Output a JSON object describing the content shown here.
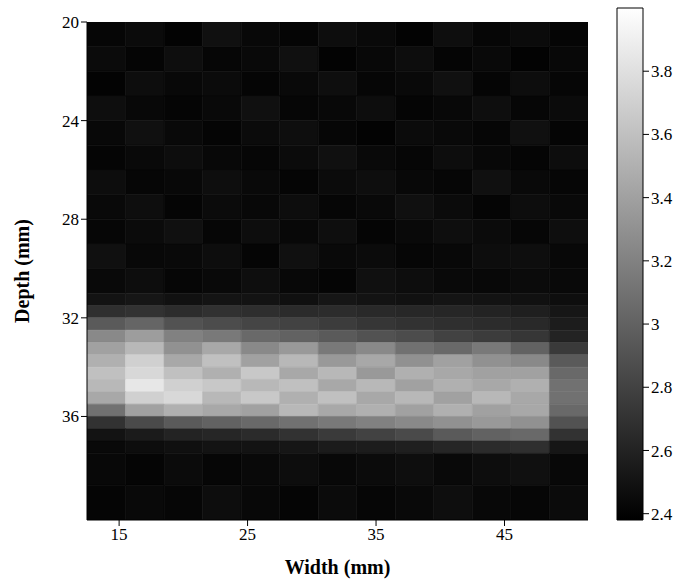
{
  "chart_data": {
    "type": "heatmap",
    "xlabel": "Width (mm)",
    "ylabel": "Depth (mm)",
    "xlim": [
      12.5,
      51.5
    ],
    "xticks": [
      15,
      25,
      35,
      45
    ],
    "ylim": [
      20,
      40.2
    ],
    "yticks": [
      20,
      24,
      28,
      32,
      36
    ],
    "heatmap": {
      "x_edges": [
        12.5,
        15.5,
        18.5,
        21.5,
        24.5,
        27.5,
        30.5,
        33.5,
        36.5,
        39.5,
        42.5,
        45.5,
        48.5,
        51.5
      ],
      "y_edges": [
        20,
        21,
        22,
        23,
        24,
        25,
        26,
        27,
        28,
        29,
        30,
        31,
        31.5,
        32,
        32.5,
        33,
        33.5,
        34,
        34.5,
        35,
        35.5,
        36,
        36.5,
        37,
        37.5,
        38.8,
        40.2
      ],
      "cells": [
        [
          2.42,
          2.45,
          2.4,
          2.48,
          2.43,
          2.41,
          2.46,
          2.44,
          2.4,
          2.47,
          2.42,
          2.45,
          2.41
        ],
        [
          2.45,
          2.41,
          2.47,
          2.42,
          2.44,
          2.48,
          2.4,
          2.43,
          2.46,
          2.41,
          2.44,
          2.4,
          2.43
        ],
        [
          2.4,
          2.46,
          2.43,
          2.45,
          2.41,
          2.44,
          2.47,
          2.42,
          2.44,
          2.48,
          2.41,
          2.46,
          2.42
        ],
        [
          2.47,
          2.43,
          2.41,
          2.44,
          2.48,
          2.42,
          2.43,
          2.46,
          2.41,
          2.43,
          2.47,
          2.42,
          2.45
        ],
        [
          2.43,
          2.48,
          2.44,
          2.41,
          2.45,
          2.47,
          2.42,
          2.4,
          2.45,
          2.44,
          2.42,
          2.48,
          2.41
        ],
        [
          2.41,
          2.44,
          2.46,
          2.43,
          2.42,
          2.45,
          2.48,
          2.44,
          2.42,
          2.46,
          2.43,
          2.41,
          2.46
        ],
        [
          2.46,
          2.42,
          2.43,
          2.47,
          2.44,
          2.41,
          2.45,
          2.47,
          2.43,
          2.42,
          2.48,
          2.44,
          2.42
        ],
        [
          2.44,
          2.47,
          2.41,
          2.45,
          2.43,
          2.46,
          2.42,
          2.44,
          2.48,
          2.45,
          2.41,
          2.46,
          2.44
        ],
        [
          2.42,
          2.45,
          2.48,
          2.42,
          2.46,
          2.43,
          2.47,
          2.41,
          2.44,
          2.47,
          2.45,
          2.42,
          2.47
        ],
        [
          2.48,
          2.43,
          2.44,
          2.46,
          2.41,
          2.48,
          2.44,
          2.45,
          2.42,
          2.43,
          2.46,
          2.47,
          2.43
        ],
        [
          2.44,
          2.46,
          2.42,
          2.44,
          2.47,
          2.43,
          2.41,
          2.48,
          2.46,
          2.44,
          2.43,
          2.45,
          2.44
        ],
        [
          2.5,
          2.52,
          2.49,
          2.51,
          2.5,
          2.48,
          2.52,
          2.5,
          2.49,
          2.51,
          2.5,
          2.49,
          2.47
        ],
        [
          2.68,
          2.7,
          2.66,
          2.69,
          2.67,
          2.65,
          2.66,
          2.64,
          2.63,
          2.62,
          2.6,
          2.58,
          2.52
        ],
        [
          2.95,
          3.02,
          2.9,
          2.86,
          2.82,
          2.8,
          2.76,
          2.72,
          2.7,
          2.68,
          2.66,
          2.64,
          2.56
        ],
        [
          3.25,
          3.38,
          3.2,
          3.15,
          3.05,
          3.0,
          2.95,
          2.9,
          2.86,
          2.8,
          2.76,
          2.72,
          2.6
        ],
        [
          3.4,
          3.55,
          3.3,
          3.45,
          3.25,
          3.35,
          3.15,
          3.25,
          3.1,
          3.05,
          3.15,
          3.0,
          2.75
        ],
        [
          3.5,
          3.7,
          3.45,
          3.6,
          3.4,
          3.55,
          3.35,
          3.45,
          3.3,
          3.4,
          3.3,
          3.25,
          2.95
        ],
        [
          3.6,
          3.75,
          3.6,
          3.5,
          3.65,
          3.45,
          3.55,
          3.35,
          3.5,
          3.45,
          3.4,
          3.4,
          3.05
        ],
        [
          3.55,
          3.85,
          3.7,
          3.65,
          3.55,
          3.6,
          3.45,
          3.55,
          3.4,
          3.5,
          3.45,
          3.5,
          3.1
        ],
        [
          3.45,
          3.7,
          3.75,
          3.55,
          3.65,
          3.5,
          3.6,
          3.45,
          3.55,
          3.4,
          3.55,
          3.45,
          3.1
        ],
        [
          3.1,
          3.4,
          3.5,
          3.45,
          3.4,
          3.55,
          3.45,
          3.5,
          3.4,
          3.5,
          3.4,
          3.45,
          3.05
        ],
        [
          2.7,
          2.85,
          2.95,
          3.0,
          3.05,
          3.1,
          3.15,
          3.2,
          3.25,
          3.3,
          3.35,
          3.3,
          2.9
        ],
        [
          2.5,
          2.55,
          2.6,
          2.62,
          2.65,
          2.7,
          2.75,
          2.8,
          2.85,
          2.95,
          3.0,
          3.05,
          2.7
        ],
        [
          2.44,
          2.46,
          2.48,
          2.5,
          2.5,
          2.52,
          2.55,
          2.56,
          2.58,
          2.62,
          2.65,
          2.68,
          2.52
        ],
        [
          2.43,
          2.41,
          2.45,
          2.42,
          2.44,
          2.46,
          2.43,
          2.45,
          2.47,
          2.44,
          2.46,
          2.48,
          2.43
        ],
        [
          2.41,
          2.44,
          2.42,
          2.46,
          2.43,
          2.41,
          2.45,
          2.42,
          2.44,
          2.47,
          2.43,
          2.42,
          2.45
        ]
      ]
    },
    "colorbar": {
      "range": [
        2.38,
        4.0
      ],
      "ticks": [
        2.4,
        2.6,
        2.8,
        3,
        3.2,
        3.4,
        3.6,
        3.8
      ]
    }
  }
}
